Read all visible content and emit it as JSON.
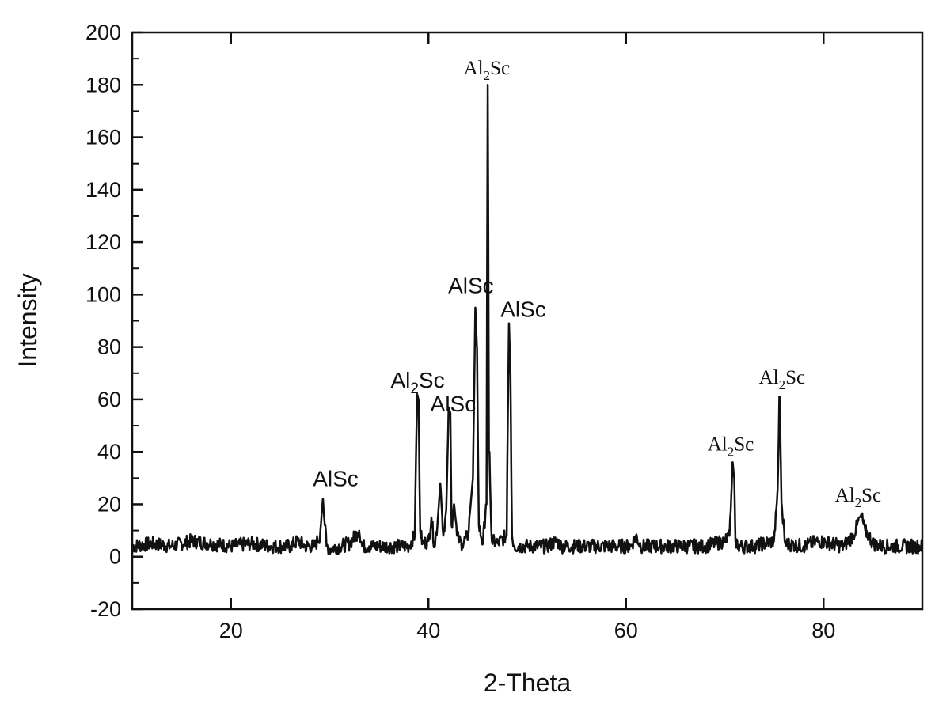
{
  "chart_data": {
    "type": "line",
    "title": "",
    "xlabel": "2-Theta",
    "ylabel": "Intensity",
    "xlim": [
      10,
      90
    ],
    "ylim": [
      -20,
      200
    ],
    "x_ticks": [
      20,
      40,
      60,
      80
    ],
    "y_ticks": [
      -20,
      0,
      20,
      40,
      60,
      80,
      100,
      120,
      140,
      160,
      180,
      200
    ],
    "grid": false,
    "legend": "none",
    "line_color": "#111111",
    "series": [
      {
        "x": [
          10.0,
          12.0,
          14.0,
          16.0,
          18.0,
          20.0,
          22.0,
          24.0,
          26.0,
          26.8,
          27.5,
          28.5,
          29.0,
          29.3,
          29.5,
          29.7,
          30.0,
          31.0,
          32.0,
          32.8,
          33.0,
          33.3,
          34.0,
          36.0,
          38.0,
          38.6,
          38.85,
          39.0,
          39.15,
          39.4,
          40.0,
          40.3,
          40.6,
          40.9,
          41.2,
          41.5,
          41.8,
          42.05,
          42.2,
          42.35,
          42.6,
          42.9,
          43.1,
          43.4,
          44.0,
          44.5,
          44.75,
          44.9,
          45.1,
          45.5,
          45.85,
          46.0,
          46.15,
          46.4,
          47.0,
          47.9,
          48.15,
          48.3,
          48.45,
          48.7,
          50.0,
          52.0,
          53.0,
          53.5,
          55.0,
          58.0,
          60.5,
          61.0,
          61.5,
          64.0,
          68.0,
          70.0,
          70.5,
          70.8,
          70.95,
          71.1,
          71.4,
          73.0,
          75.0,
          75.35,
          75.55,
          75.75,
          76.1,
          78.0,
          79.5,
          82.0,
          83.0,
          83.4,
          83.8,
          84.2,
          84.6,
          85.0,
          86.0,
          88.0,
          90.0
        ],
        "y": [
          4,
          5,
          4,
          6,
          5,
          4,
          5,
          4,
          4,
          6,
          4,
          4,
          8,
          22,
          12,
          4,
          3,
          4,
          5,
          9,
          10,
          4,
          4,
          4,
          4,
          8,
          62,
          60,
          10,
          5,
          6,
          15,
          4,
          12,
          28,
          8,
          18,
          57,
          55,
          12,
          20,
          8,
          6,
          5,
          8,
          30,
          95,
          80,
          12,
          5,
          20,
          180,
          40,
          6,
          5,
          8,
          89,
          70,
          8,
          4,
          4,
          4,
          6,
          4,
          4,
          4,
          4,
          8,
          4,
          4,
          4,
          6,
          8,
          36,
          30,
          6,
          4,
          4,
          6,
          25,
          61,
          20,
          5,
          4,
          6,
          4,
          8,
          12,
          16,
          10,
          8,
          5,
          4,
          4,
          4
        ]
      }
    ],
    "annotations": [
      {
        "text": "AlSc",
        "x": 30.6,
        "y": 27,
        "sub": "",
        "after": "",
        "style": "sans"
      },
      {
        "text": "Al",
        "x": 38.9,
        "y": 64.5,
        "sub": "2",
        "after": "Sc",
        "style": "sans"
      },
      {
        "text": "AlSc",
        "x": 42.5,
        "y": 55.5,
        "sub": "",
        "after": "",
        "style": "sans"
      },
      {
        "text": "AlSc",
        "x": 44.3,
        "y": 100.5,
        "sub": "",
        "after": "",
        "style": "sans"
      },
      {
        "text": "Al",
        "x": 45.9,
        "y": 184,
        "sub": "2",
        "after": "Sc",
        "style": "serif"
      },
      {
        "text": "AlSc",
        "x": 49.6,
        "y": 91.5,
        "sub": "",
        "after": "",
        "style": "sans"
      },
      {
        "text": "Al",
        "x": 70.6,
        "y": 40.5,
        "sub": "2",
        "after": "Sc",
        "style": "serif"
      },
      {
        "text": "Al",
        "x": 75.8,
        "y": 66,
        "sub": "2",
        "after": "Sc",
        "style": "serif"
      },
      {
        "text": "Al",
        "x": 83.5,
        "y": 21,
        "sub": "2",
        "after": "Sc",
        "style": "serif"
      }
    ]
  }
}
